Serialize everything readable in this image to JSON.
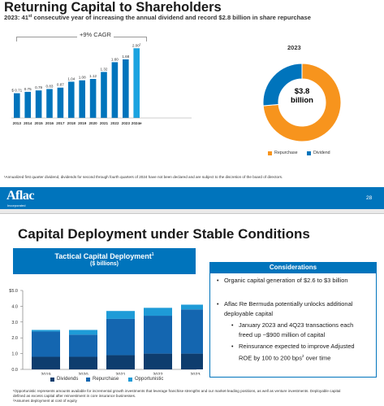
{
  "slide1": {
    "title": "Returning Capital to Shareholders",
    "subtitle_prefix": "2023:  41",
    "subtitle_sup": "st",
    "subtitle_rest": " consecutive year of increasing the annual dividend and record $2.8 billion in share repurchase",
    "cagr_label": "+9% CAGR",
    "donut_title": "2023",
    "donut_center_line1": "$3.8",
    "donut_center_line2": "billion",
    "legend": [
      {
        "label": "Repurchase",
        "color": "#f7941d"
      },
      {
        "label": "Dividend",
        "color": "#0074bc"
      }
    ],
    "footnote": "¹Annualized first quarter dividend, dividends for second through fourth quarters of 2024 have not been declared and are subject to the discretion of the board of directors.",
    "logo": "Aflac",
    "logo_sub": "Incorporated",
    "page_number": "28"
  },
  "slide2": {
    "title": "Capital Deployment under Stable Conditions",
    "tactical_title": "Tactical Capital Deployment",
    "tactical_sup": "1",
    "tactical_sub": "($ billions)",
    "legend": [
      {
        "label": "Dividends",
        "color": "#0e3d6e"
      },
      {
        "label": "Repurchase",
        "color": "#1466b0"
      },
      {
        "label": "Opportunistic",
        "color": "#1e9bd7"
      }
    ],
    "considerations_title": "Considerations",
    "considerations": {
      "item1": "Organic capital generation of $2.6 to $3 billion",
      "item2_line1": "Aflac Re Bermuda potentially unlocks additional",
      "item2_line2": "deployable capital",
      "sub1_line1": "January 2023 and 4Q23 transactions each",
      "sub1_line2": "freed up ~$900 million of capital",
      "sub2_line1": "Reinsurance expected to improve Adjusted",
      "sub2_line2_a": "ROE by 100 to 200 bps",
      "sub2_sup": "2",
      "sub2_line2_b": " over time"
    },
    "footnote1": "¹Opportunistic represents amounts available for incremental growth investments that leverage franchise strengths and our market-leading positions, as well as venture investments. Deployable capital",
    "footnote2": "defined as excess capital after reinvestment in core insurance businesses.",
    "footnote3": "²Assumes deployment at cost of equity"
  },
  "chart_data": [
    {
      "type": "bar",
      "title": "",
      "categories": [
        "2013",
        "2014",
        "2015",
        "2016",
        "2017",
        "2018",
        "2019",
        "2020",
        "2021",
        "2022",
        "2023",
        "2024e"
      ],
      "values": [
        0.71,
        0.75,
        0.79,
        0.83,
        0.87,
        1.04,
        1.08,
        1.12,
        1.32,
        1.6,
        1.68,
        2.0
      ],
      "value_labels": [
        "$ 0.71",
        "0.75",
        "0.79",
        "0.83",
        "0.87",
        "1.04",
        "1.08",
        "1.12",
        "1.32",
        "1.60",
        "1.68",
        "2.00"
      ],
      "last_label_sup": "1",
      "bar_colors": [
        "#0074bc",
        "#0074bc",
        "#0074bc",
        "#0074bc",
        "#0074bc",
        "#0074bc",
        "#0074bc",
        "#0074bc",
        "#0074bc",
        "#0074bc",
        "#0074bc",
        "#1ba3e0"
      ],
      "ylim": [
        0,
        2.1
      ]
    },
    {
      "type": "pie",
      "title": "2023",
      "categories": [
        "Repurchase",
        "Dividend"
      ],
      "values": [
        2.8,
        1.0
      ],
      "colors": [
        "#f7941d",
        "#0074bc"
      ]
    },
    {
      "type": "bar",
      "title": "Tactical Capital Deployment",
      "stacked": true,
      "categories": [
        "2019",
        "2020",
        "2021",
        "2022",
        "2023"
      ],
      "series": [
        {
          "name": "Dividends",
          "values": [
            0.8,
            0.8,
            0.9,
            1.0,
            1.0
          ],
          "color": "#0e3d6e"
        },
        {
          "name": "Repurchase",
          "values": [
            1.6,
            1.4,
            2.3,
            2.4,
            2.8
          ],
          "color": "#1466b0"
        },
        {
          "name": "Opportunistic",
          "values": [
            0.1,
            0.3,
            0.5,
            0.5,
            0.3
          ],
          "color": "#1e9bd7"
        }
      ],
      "yticks": [
        "$5.0",
        "4.0",
        "3.0",
        "2.0",
        "1.0",
        "0.0"
      ],
      "ylim": [
        0,
        5
      ]
    }
  ]
}
